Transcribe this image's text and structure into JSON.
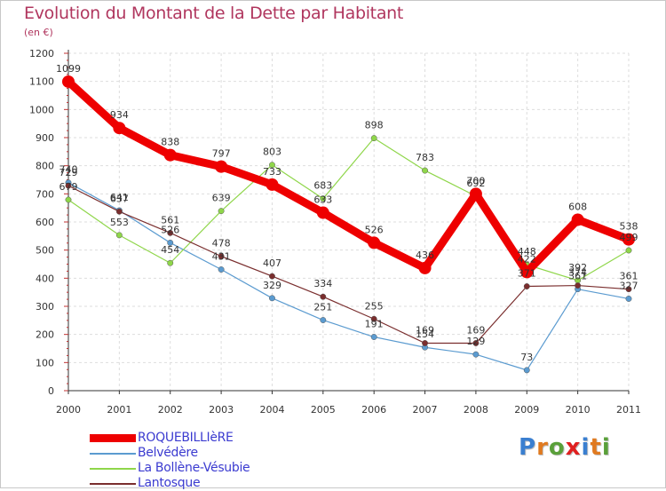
{
  "title": "Evolution du Montant de la Dette par Habitant",
  "unit": "(en €)",
  "logo": "Proxiti",
  "chart_data": {
    "type": "line",
    "x": [
      "2000",
      "2001",
      "2002",
      "2003",
      "2004",
      "2005",
      "2006",
      "2007",
      "2008",
      "2009",
      "2010",
      "2011"
    ],
    "ylim": [
      0,
      1200
    ],
    "yticks": [
      0,
      100,
      200,
      300,
      400,
      500,
      600,
      700,
      800,
      900,
      1000,
      1100,
      1200
    ],
    "grid": true,
    "legend_position": "bottom-left",
    "series": [
      {
        "name": "ROQUEBILLIèRE",
        "color": "#ee0000",
        "width": 9,
        "values": [
          1099,
          934,
          838,
          797,
          733,
          633,
          526,
          436,
          700,
          422,
          608,
          538
        ]
      },
      {
        "name": "Belvédère",
        "color": "#5b9bd0",
        "width": 1.2,
        "values": [
          740,
          641,
          526,
          431,
          329,
          251,
          191,
          154,
          129,
          73,
          361,
          327
        ]
      },
      {
        "name": "La Bollène-Vésubie",
        "color": "#8fd64a",
        "width": 1.2,
        "values": [
          679,
          553,
          454,
          639,
          803,
          683,
          898,
          783,
          692,
          448,
          392,
          499
        ]
      },
      {
        "name": "Lantosque",
        "color": "#7a2e2e",
        "width": 1.2,
        "values": [
          729,
          637,
          561,
          478,
          407,
          334,
          255,
          169,
          169,
          371,
          374,
          361
        ]
      }
    ]
  }
}
